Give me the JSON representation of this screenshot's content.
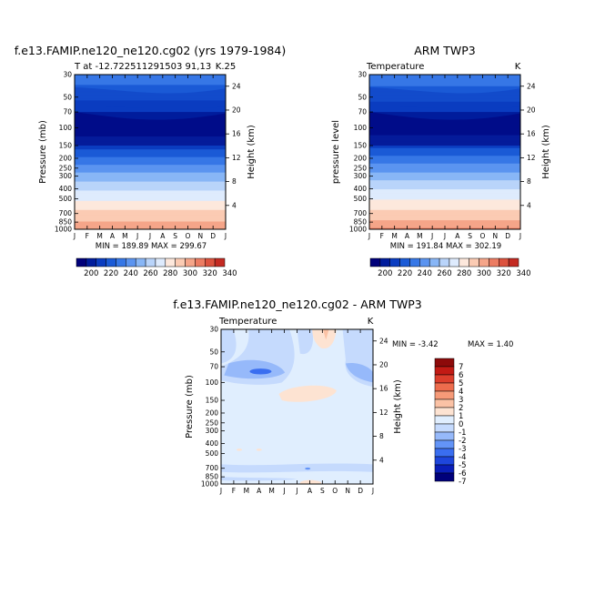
{
  "chart_data": [
    {
      "type": "heatmap",
      "id": "model",
      "title": "f.e13.FAMIP.ne120_ne120.cg02 (yrs 1979-1984)",
      "subtitle_left": "T at -12.722511291503 91,13",
      "subtitle_right": "K.25",
      "ylabel": "Pressure (mb)",
      "ylabel_right": "Height (km)",
      "xlabel": "",
      "months": [
        "J",
        "F",
        "M",
        "A",
        "M",
        "J",
        "J",
        "A",
        "S",
        "O",
        "N",
        "D",
        "J"
      ],
      "pressure_ticks": [
        "30",
        "50",
        "70",
        "100",
        "150",
        "200",
        "250",
        "300",
        "400",
        "500",
        "700",
        "850",
        "1000"
      ],
      "height_ticks": [
        "24",
        "20",
        "16",
        "12",
        "8",
        "4"
      ],
      "stats": "MIN = 189.89  MAX = 299.67",
      "colorbar_ticks": [
        "200",
        "220",
        "240",
        "260",
        "280",
        "300",
        "320",
        "340"
      ],
      "levels_K": [
        200,
        210,
        220,
        230,
        240,
        250,
        260,
        270,
        280,
        290
      ],
      "profile_K": [
        {
          "p": 30,
          "t": 226
        },
        {
          "p": 50,
          "t": 213
        },
        {
          "p": 70,
          "t": 200
        },
        {
          "p": 100,
          "t": 194
        },
        {
          "p": 150,
          "t": 206
        },
        {
          "p": 200,
          "t": 222
        },
        {
          "p": 250,
          "t": 234
        },
        {
          "p": 300,
          "t": 244
        },
        {
          "p": 400,
          "t": 258
        },
        {
          "p": 500,
          "t": 268
        },
        {
          "p": 700,
          "t": 283
        },
        {
          "p": 850,
          "t": 291
        },
        {
          "p": 1000,
          "t": 299
        }
      ]
    },
    {
      "type": "heatmap",
      "id": "obs",
      "title": "ARM TWP3",
      "subtitle_left": "Temperature",
      "subtitle_right": "K",
      "ylabel": "pressure level",
      "ylabel_right": "Height (km)",
      "xlabel": "",
      "months": [
        "J",
        "F",
        "M",
        "A",
        "M",
        "J",
        "J",
        "A",
        "S",
        "O",
        "N",
        "D",
        "J"
      ],
      "pressure_ticks": [
        "30",
        "50",
        "70",
        "100",
        "150",
        "200",
        "250",
        "300",
        "400",
        "500",
        "700",
        "850",
        "1000"
      ],
      "height_ticks": [
        "24",
        "20",
        "16",
        "12",
        "8",
        "4"
      ],
      "stats": "MIN = 191.84  MAX = 302.19",
      "colorbar_ticks": [
        "200",
        "220",
        "240",
        "260",
        "280",
        "300",
        "320",
        "340"
      ],
      "levels_K": [
        200,
        210,
        220,
        230,
        240,
        250,
        260,
        270,
        280,
        290
      ],
      "profile_K": [
        {
          "p": 30,
          "t": 227
        },
        {
          "p": 50,
          "t": 214
        },
        {
          "p": 70,
          "t": 200
        },
        {
          "p": 100,
          "t": 195
        },
        {
          "p": 150,
          "t": 207
        },
        {
          "p": 200,
          "t": 223
        },
        {
          "p": 250,
          "t": 235
        },
        {
          "p": 300,
          "t": 245
        },
        {
          "p": 400,
          "t": 259
        },
        {
          "p": 500,
          "t": 269
        },
        {
          "p": 700,
          "t": 284
        },
        {
          "p": 850,
          "t": 292
        },
        {
          "p": 1000,
          "t": 301
        }
      ]
    },
    {
      "type": "heatmap",
      "id": "diff",
      "title": "f.e13.FAMIP.ne120_ne120.cg02 - ARM TWP3",
      "subtitle_left": "Temperature",
      "subtitle_right": "K",
      "ylabel": "Pressure (mb)",
      "ylabel_right": "Height (km)",
      "xlabel": "",
      "months": [
        "J",
        "F",
        "M",
        "A",
        "M",
        "J",
        "J",
        "A",
        "S",
        "O",
        "N",
        "D",
        "J"
      ],
      "pressure_ticks": [
        "30",
        "50",
        "70",
        "100",
        "150",
        "200",
        "250",
        "300",
        "400",
        "500",
        "700",
        "850",
        "1000"
      ],
      "height_ticks": [
        "24",
        "20",
        "16",
        "12",
        "8",
        "4"
      ],
      "stats_min_label": "MIN =   -3.42",
      "stats_max_label": "MAX =    1.40",
      "colorbar_ticks": [
        "7",
        "6",
        "5",
        "4",
        "3",
        "2",
        "1",
        "0",
        "-1",
        "-2",
        "-3",
        "-4",
        "-5",
        "-6",
        "-7"
      ],
      "levels_K": [
        -7,
        -6,
        -5,
        -4,
        -3,
        -2,
        -1,
        0,
        1,
        2,
        3,
        4,
        5,
        6,
        7
      ],
      "background_K": -0.5
    }
  ],
  "colors": {
    "temp_palette": [
      "#00007a",
      "#001c9c",
      "#0a3cc0",
      "#1a5ad6",
      "#3677e6",
      "#5b94f0",
      "#88b6f6",
      "#b9d4fa",
      "#deebfd",
      "#fde8dc",
      "#fbcbb3",
      "#f5a589",
      "#ec7c62",
      "#dc523e",
      "#c42a22",
      "#8f0d0d"
    ],
    "diff_palette": [
      "#00007a",
      "#0a1eb8",
      "#1e46dc",
      "#3a6ef0",
      "#6394f7",
      "#96b9fa",
      "#c5dafd",
      "#e0eefe",
      "#fde3d2",
      "#fbc2a5",
      "#f69a78",
      "#ed6c4d",
      "#dc3e2c",
      "#c21a14",
      "#8d0a0a"
    ]
  }
}
